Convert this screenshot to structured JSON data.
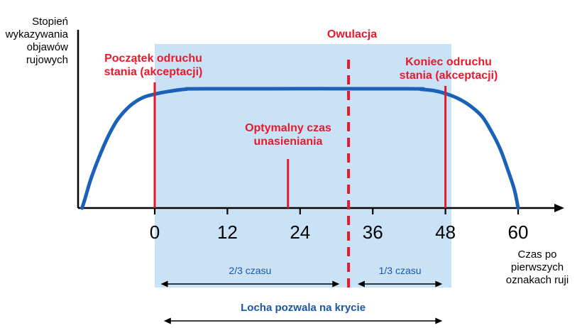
{
  "chart_data": {
    "type": "line",
    "title": "",
    "y_axis_label": "Stopień\nwykazywania\nobjawów\nrujowych",
    "x_axis_label": "Czas po\npierwszych\noznakach ruji",
    "x_ticks": [
      0,
      12,
      24,
      36,
      48,
      60
    ],
    "x_range": [
      -13,
      66
    ],
    "y_range_normalized": [
      0,
      1
    ],
    "curve_points": [
      [
        -12,
        0
      ],
      [
        -11.5,
        0.08
      ],
      [
        -10.5,
        0.25
      ],
      [
        -9,
        0.45
      ],
      [
        -7.5,
        0.62
      ],
      [
        -6,
        0.75
      ],
      [
        -4,
        0.86
      ],
      [
        -2,
        0.925
      ],
      [
        0,
        0.955
      ],
      [
        2,
        0.975
      ],
      [
        5,
        0.995
      ],
      [
        9,
        1
      ],
      [
        41,
        1
      ],
      [
        44,
        0.995
      ],
      [
        46,
        0.985
      ],
      [
        48,
        0.96
      ],
      [
        50,
        0.92
      ],
      [
        52,
        0.86
      ],
      [
        54,
        0.77
      ],
      [
        55.5,
        0.65
      ],
      [
        57,
        0.5
      ],
      [
        58.3,
        0.32
      ],
      [
        59.4,
        0.15
      ],
      [
        60,
        0
      ]
    ],
    "shaded_region": {
      "from": 0,
      "to": 49
    },
    "annotations": {
      "onset": {
        "x": 0,
        "label": "Początek odruchu\nstania (akceptacji)"
      },
      "end": {
        "x": 48,
        "label": "Koniec odruchu\nstania (akceptacji)"
      },
      "ovulation": {
        "x": 32,
        "label": "Owulacja"
      },
      "optimal": {
        "x": 22,
        "label": "Optymalny czas\nunasieniania"
      }
    },
    "spans": [
      {
        "id": "two-thirds",
        "label": "2/3 czasu",
        "from": 1,
        "to": 30.5
      },
      {
        "id": "one-third",
        "label": "1/3 czasu",
        "from": 33.5,
        "to": 47.5
      },
      {
        "id": "mating-window",
        "label": "Locha pozwala na krycie",
        "from": 1.5,
        "to": 47.5
      }
    ],
    "colors": {
      "curve": "#1b61b8",
      "red": "#e8192c",
      "shade": "#c9e2f6",
      "blue": "#1a56a5",
      "axis": "#000000"
    }
  }
}
